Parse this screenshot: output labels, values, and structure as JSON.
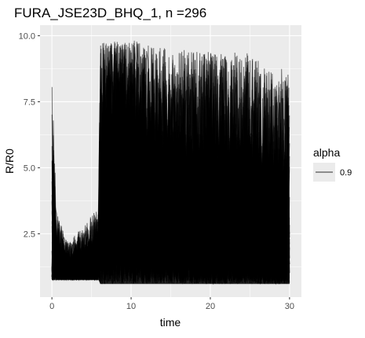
{
  "chart_data": {
    "type": "line",
    "title": "FURA_JSE23D_BHQ_1, n =296",
    "xlabel": "time",
    "ylabel": "R/R0",
    "xlim": [
      -1.5,
      31.5
    ],
    "ylim": [
      0.1,
      10.4
    ],
    "x_ticks": [
      "0",
      "10",
      "20",
      "30"
    ],
    "y_ticks": [
      "2.5",
      "5.0",
      "7.5",
      "10.0"
    ],
    "x_tick_values": [
      0,
      10,
      20,
      30
    ],
    "y_tick_values": [
      2.5,
      5.0,
      7.5,
      10.0
    ],
    "grid": true,
    "background_color": "#EBEBEB",
    "line_color": "#000000",
    "line_alpha": 0.9,
    "n_series": 296,
    "x_range": [
      0,
      30
    ],
    "legend": {
      "position": "right",
      "title": "alpha",
      "entries": [
        {
          "label": "0.9"
        }
      ]
    },
    "envelope": {
      "x": [
        0,
        0.3,
        0.6,
        1,
        2,
        3,
        4,
        5,
        5.9,
        6.1,
        7,
        8,
        9,
        10,
        11,
        12,
        13,
        14,
        15,
        16,
        17,
        18,
        19,
        20,
        21,
        22,
        23,
        24,
        25,
        26,
        26.5,
        27,
        28,
        29,
        30
      ],
      "min": [
        0.75,
        0.75,
        0.75,
        0.75,
        0.75,
        0.75,
        0.75,
        0.75,
        0.75,
        0.6,
        0.6,
        0.6,
        0.6,
        0.6,
        0.6,
        0.6,
        0.6,
        0.6,
        0.6,
        0.6,
        0.6,
        0.6,
        0.6,
        0.6,
        0.6,
        0.6,
        0.6,
        0.6,
        0.6,
        0.6,
        0.6,
        0.6,
        0.6,
        0.6,
        0.6
      ],
      "max": [
        8.3,
        6.0,
        3.5,
        3.0,
        2.2,
        2.5,
        2.8,
        3.2,
        3.5,
        9.8,
        9.7,
        9.8,
        9.7,
        9.9,
        9.8,
        9.7,
        9.6,
        9.6,
        9.5,
        9.4,
        9.5,
        9.4,
        9.4,
        9.4,
        9.4,
        9.3,
        9.4,
        9.3,
        9.4,
        9.1,
        8.8,
        9.0,
        8.5,
        8.8,
        8.5
      ],
      "dense_upper": [
        1.3,
        1.3,
        1.3,
        1.3,
        1.3,
        1.3,
        1.3,
        1.3,
        1.3,
        6.0,
        6.8,
        7.2,
        7.0,
        6.5,
        6.3,
        6.0,
        5.5,
        5.2,
        5.0,
        4.8,
        4.6,
        4.5,
        4.3,
        4.2,
        4.0,
        3.9,
        3.8,
        3.7,
        3.6,
        3.5,
        3.3,
        3.4,
        3.2,
        3.1,
        3.0
      ]
    }
  }
}
